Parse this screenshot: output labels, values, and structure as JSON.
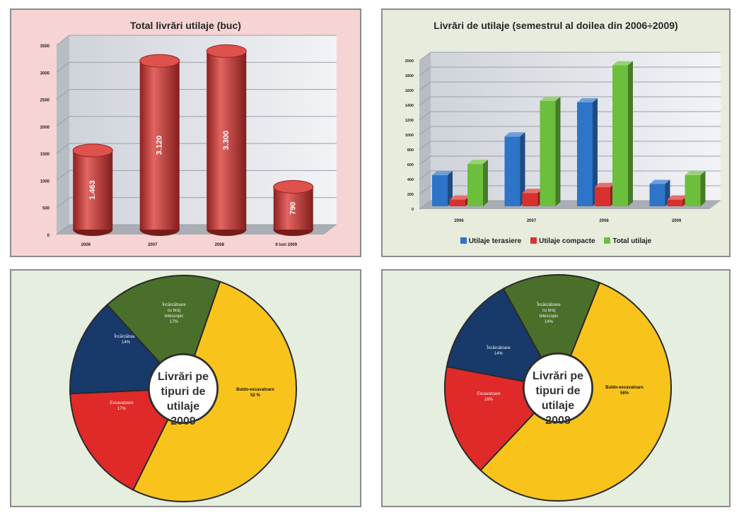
{
  "chart_data": [
    {
      "type": "bar",
      "title": "Total livrări utilaje (buc)",
      "categories": [
        "2006",
        "2007",
        "2008",
        "9 luni 2009"
      ],
      "values": [
        1463,
        3120,
        3300,
        790
      ],
      "value_labels": [
        "1.463",
        "3.120",
        "3.300",
        "790"
      ],
      "y_ticks": [
        "0",
        "500",
        "1000",
        "1500",
        "2000",
        "2500",
        "3000",
        "3500"
      ],
      "ylim": [
        0,
        3500
      ],
      "grid": true,
      "color": "#d9322e"
    },
    {
      "type": "bar",
      "title": "Livrări de utilaje (semestrul al doilea din 2006÷2009)",
      "categories": [
        "2006",
        "2007",
        "2008",
        "2009"
      ],
      "series": [
        {
          "name": "Utilaje terasiere",
          "color": "#2e74c8",
          "values": [
            420,
            940,
            1400,
            300
          ]
        },
        {
          "name": "Utilaje compacte",
          "color": "#d9322e",
          "values": [
            90,
            180,
            260,
            90
          ]
        },
        {
          "name": "Total utilaje",
          "color": "#6cbf3c",
          "values": [
            570,
            1420,
            1900,
            420
          ]
        }
      ],
      "y_ticks": [
        "0",
        "200",
        "400",
        "600",
        "800",
        "1000",
        "1200",
        "1400",
        "1600",
        "1800",
        "2000"
      ],
      "ylim": [
        0,
        2000
      ],
      "grid": true,
      "legend": "bottom"
    },
    {
      "type": "pie",
      "title": "Livrări pe tipuri de utilaje 2009",
      "center_lines": [
        "Livrări pe",
        "tipuri de",
        "utilaje",
        "2009"
      ],
      "slices": [
        {
          "label": "Buldo-excavatoare",
          "pct_label": "52 %",
          "value": 52,
          "color": "#f8c41c"
        },
        {
          "label": "Excavatoare",
          "pct_label": "17%",
          "value": 17,
          "color": "#e02a2a"
        },
        {
          "label": "Încărcătoare",
          "pct_label": "14%",
          "value": 14,
          "color": "#173a6b"
        },
        {
          "label": "Încărcătoare cu braţ telescopic",
          "pct_label": "17%",
          "value": 17,
          "color": "#4a6f2a"
        }
      ]
    },
    {
      "type": "pie",
      "title": "Livrări pe tipuri de utilaje 2008",
      "center_lines": [
        "Livrări pe",
        "tipuri de",
        "utilaje",
        "2008"
      ],
      "slices": [
        {
          "label": "Buldo-excavatoare",
          "pct_label": "56%",
          "value": 56,
          "color": "#f8c41c"
        },
        {
          "label": "Excavatoare",
          "pct_label": "16%",
          "value": 16,
          "color": "#e02a2a"
        },
        {
          "label": "Încărcătoare",
          "pct_label": "14%",
          "value": 14,
          "color": "#173a6b"
        },
        {
          "label": "Încărcătoare cu braţ telescopic",
          "pct_label": "14%",
          "value": 14,
          "color": "#4a6f2a"
        }
      ]
    }
  ]
}
